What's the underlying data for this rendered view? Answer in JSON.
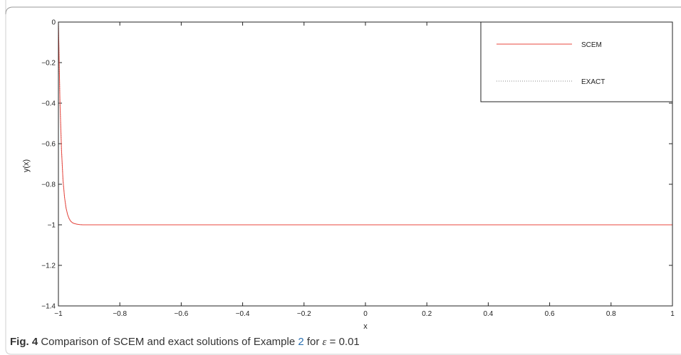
{
  "chart_data": {
    "type": "line",
    "xlabel": "x",
    "ylabel": "y(x)",
    "xlim": [
      -1,
      1
    ],
    "ylim": [
      -1.4,
      0
    ],
    "x_ticks": [
      -1,
      -0.8,
      -0.6,
      -0.4,
      -0.2,
      0,
      0.2,
      0.4,
      0.6,
      0.8,
      1
    ],
    "x_tick_labels": [
      "−1",
      "−0.8",
      "−0.6",
      "−0.4",
      "−0.2",
      "0",
      "0.2",
      "0.4",
      "0.6",
      "0.8",
      "1"
    ],
    "y_ticks": [
      0,
      -0.2,
      -0.4,
      -0.6,
      -0.8,
      -1,
      -1.2,
      -1.4
    ],
    "y_tick_labels": [
      "0",
      "−0.2",
      "−0.4",
      "−0.6",
      "−0.8",
      "−1",
      "−1.2",
      "−1.4"
    ],
    "grid": false,
    "legend_position": "top-right",
    "series": [
      {
        "name": "SCEM",
        "color": "#e8473f",
        "style": "solid",
        "x": [
          -1,
          -0.995,
          -0.99,
          -0.985,
          -0.98,
          -0.975,
          -0.97,
          -0.965,
          -0.96,
          -0.955,
          -0.95,
          -0.94,
          -0.93,
          -0.92,
          -0.9,
          -0.85,
          -0.8,
          -0.6,
          -0.4,
          -0.2,
          0,
          0.2,
          0.4,
          0.6,
          0.8,
          1
        ],
        "y": [
          0,
          -0.39,
          -0.63,
          -0.78,
          -0.865,
          -0.918,
          -0.95,
          -0.97,
          -0.982,
          -0.989,
          -0.993,
          -0.997,
          -0.999,
          -1,
          -1,
          -1,
          -1,
          -1,
          -1,
          -1,
          -1,
          -1,
          -1,
          -1,
          -1,
          -1
        ]
      },
      {
        "name": "EXACT",
        "color": "#888888",
        "style": "dotted",
        "x": [
          -1,
          -0.995,
          -0.99,
          -0.985,
          -0.98,
          -0.975,
          -0.97,
          -0.965,
          -0.96,
          -0.955,
          -0.95,
          -0.94,
          -0.93,
          -0.92,
          -0.9,
          -0.85,
          -0.8,
          -0.6,
          -0.4,
          -0.2,
          0,
          0.2,
          0.4,
          0.6,
          0.8,
          1
        ],
        "y": [
          0,
          -0.39,
          -0.63,
          -0.78,
          -0.865,
          -0.918,
          -0.95,
          -0.97,
          -0.982,
          -0.989,
          -0.993,
          -0.997,
          -0.999,
          -1,
          -1,
          -1,
          -1,
          -1,
          -1,
          -1,
          -1,
          -1,
          -1,
          -1,
          -1,
          -1
        ]
      }
    ]
  },
  "caption": {
    "label": "Fig. 4",
    "text_before": "Comparison of SCEM and exact solutions of Example ",
    "ref": "2",
    "text_middle": " for ",
    "epsilon_symbol": "ε",
    "text_after": " = 0.01"
  }
}
